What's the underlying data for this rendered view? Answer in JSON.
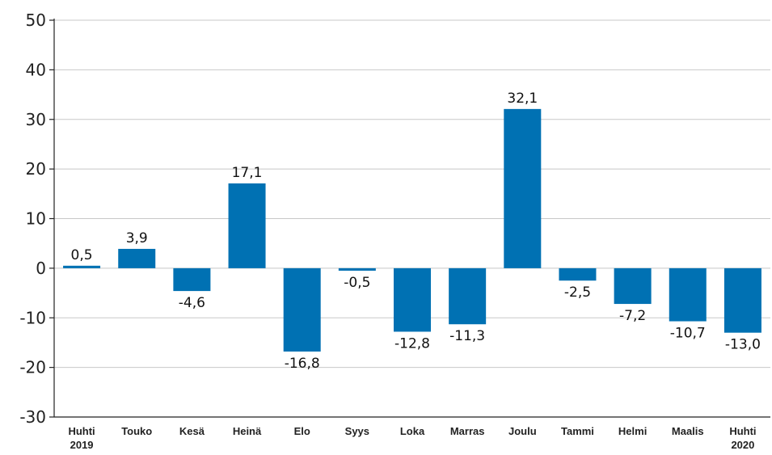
{
  "chart_data": {
    "type": "bar",
    "title": "",
    "xlabel": "",
    "ylabel": "",
    "categories": [
      [
        "Huhti",
        "2019"
      ],
      [
        "Touko"
      ],
      [
        "Kesä"
      ],
      [
        "Heinä"
      ],
      [
        "Elo"
      ],
      [
        "Syys"
      ],
      [
        "Loka"
      ],
      [
        "Marras"
      ],
      [
        "Joulu"
      ],
      [
        "Tammi"
      ],
      [
        "Helmi"
      ],
      [
        "Maalis"
      ],
      [
        "Huhti",
        "2020"
      ]
    ],
    "values": [
      0.5,
      3.9,
      -4.6,
      17.1,
      -16.8,
      -0.5,
      -12.8,
      -11.3,
      32.1,
      -2.5,
      -7.2,
      -10.7,
      -13.0
    ],
    "value_labels": [
      "0,5",
      "3,9",
      "-4,6",
      "17,1",
      "-16,8",
      "-0,5",
      "-12,8",
      "-11,3",
      "32,1",
      "-2,5",
      "-7,2",
      "-10,7",
      "-13,0"
    ],
    "ylim": [
      -30,
      50
    ],
    "yticks": [
      50,
      40,
      30,
      20,
      10,
      0,
      -10,
      -20,
      -30
    ],
    "grid": true,
    "legend": "none",
    "bar_color": "#0071b3"
  }
}
